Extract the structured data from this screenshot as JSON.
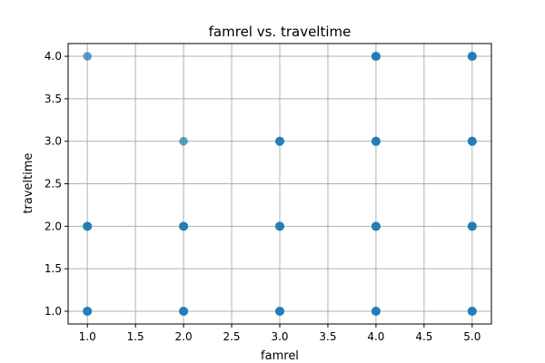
{
  "chart_data": {
    "type": "scatter",
    "title": "famrel vs. traveltime",
    "xlabel": "famrel",
    "ylabel": "traveltime",
    "xlim": [
      0.8,
      5.2
    ],
    "ylim": [
      0.85,
      4.15
    ],
    "xticks": [
      1.0,
      1.5,
      2.0,
      2.5,
      3.0,
      3.5,
      4.0,
      4.5,
      5.0
    ],
    "xtick_labels": [
      "1.0",
      "1.5",
      "2.0",
      "2.5",
      "3.0",
      "3.5",
      "4.0",
      "4.5",
      "5.0"
    ],
    "yticks": [
      1.0,
      1.5,
      2.0,
      2.5,
      3.0,
      3.5,
      4.0
    ],
    "ytick_labels": [
      "1.0",
      "1.5",
      "2.0",
      "2.5",
      "3.0",
      "3.5",
      "4.0"
    ],
    "grid": true,
    "marker_color": "#1f77b4",
    "points": [
      {
        "x": 1,
        "y": 1,
        "density": "dense"
      },
      {
        "x": 1,
        "y": 2,
        "density": "dense"
      },
      {
        "x": 1,
        "y": 4,
        "density": "light"
      },
      {
        "x": 2,
        "y": 1,
        "density": "dense"
      },
      {
        "x": 2,
        "y": 2,
        "density": "dense"
      },
      {
        "x": 2,
        "y": 3,
        "density": "light"
      },
      {
        "x": 3,
        "y": 1,
        "density": "dense"
      },
      {
        "x": 3,
        "y": 2,
        "density": "dense"
      },
      {
        "x": 3,
        "y": 3,
        "density": "dense"
      },
      {
        "x": 4,
        "y": 1,
        "density": "dense"
      },
      {
        "x": 4,
        "y": 2,
        "density": "dense"
      },
      {
        "x": 4,
        "y": 3,
        "density": "dense"
      },
      {
        "x": 4,
        "y": 4,
        "density": "dense"
      },
      {
        "x": 5,
        "y": 1,
        "density": "dense"
      },
      {
        "x": 5,
        "y": 2,
        "density": "dense"
      },
      {
        "x": 5,
        "y": 3,
        "density": "dense"
      },
      {
        "x": 5,
        "y": 4,
        "density": "dense"
      }
    ]
  }
}
